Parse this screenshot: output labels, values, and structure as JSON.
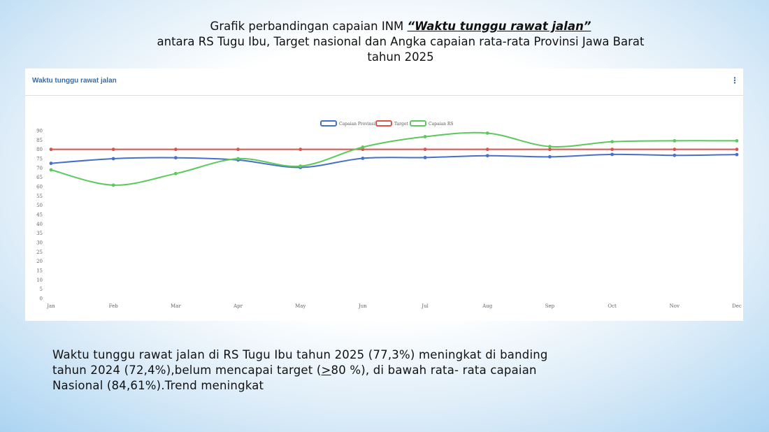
{
  "slide": {
    "title_part1": "Grafik perbandingan capaian INM ",
    "title_emphasis": "“Waktu tunggu rawat jalan”",
    "title_line2": "antara RS Tugu Ibu, Target nasional dan Angka capaian rata-rata Provinsi Jawa Barat",
    "title_line3": "tahun 2025"
  },
  "panel": {
    "title": "Waktu tunggu rawat jalan",
    "menu_icon": "vertical-dots-icon"
  },
  "chart_data": {
    "type": "line",
    "title": "Waktu tunggu rawat jalan",
    "categories": [
      "Jan",
      "Feb",
      "Mar",
      "Apr",
      "May",
      "Jun",
      "Jul",
      "Aug",
      "Sep",
      "Oct",
      "Nov",
      "Dec"
    ],
    "ylim": [
      0,
      90
    ],
    "yticks": [
      0,
      5,
      10,
      15,
      20,
      25,
      30,
      35,
      40,
      45,
      50,
      55,
      60,
      65,
      70,
      75,
      80,
      85,
      90
    ],
    "grid": false,
    "legend_position": "top-center",
    "series": [
      {
        "name": "Capaian Provinsi",
        "color": "#4a6fc7",
        "values": [
          72.5,
          75.0,
          75.5,
          74.3,
          70.3,
          75.2,
          75.6,
          76.6,
          76.0,
          77.3,
          76.8,
          77.2
        ]
      },
      {
        "name": "Target",
        "color": "#d9534f",
        "values": [
          80,
          80,
          80,
          80,
          80,
          80,
          80,
          80,
          80,
          80,
          80,
          80
        ]
      },
      {
        "name": "Capaian RS",
        "color": "#5cc95c",
        "values": [
          69.0,
          60.8,
          67.0,
          75.0,
          71.0,
          81.2,
          86.8,
          88.7,
          81.5,
          84.1,
          84.6,
          84.6
        ]
      }
    ]
  },
  "note": {
    "line1": "Waktu tunggu rawat jalan di RS Tugu Ibu tahun 2025 (77,3%) meningkat  di banding",
    "line2a": "tahun 2024 (72,4%),belum mencapai target (",
    "line2u": ">",
    "line2b": "80 %), di bawah rata- rata capaian",
    "line3": "Nasional (84,61%).Trend meningkat"
  }
}
